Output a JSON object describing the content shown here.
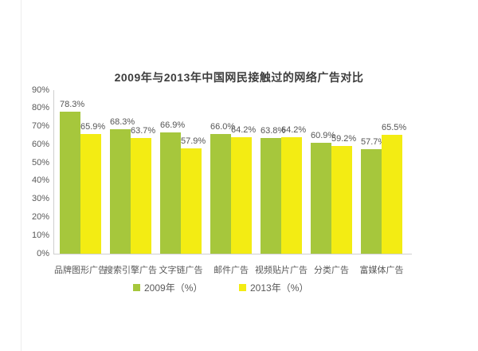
{
  "page": {
    "background": "#ffffff"
  },
  "chart_data": {
    "type": "bar",
    "title": "2009年与2013年中国网民接触过的网络广告对比",
    "categories": [
      "品牌图形广告",
      "搜索引擎广告",
      "文字链广告",
      "邮件广告",
      "视频贴片广告",
      "分类广告",
      "富媒体广告"
    ],
    "series": [
      {
        "name": "2009年（%）",
        "color": "#A6C73C",
        "values": [
          78.3,
          68.3,
          66.9,
          66.0,
          63.8,
          60.9,
          57.7
        ]
      },
      {
        "name": "2013年（%）",
        "color": "#F3EC13",
        "values": [
          65.9,
          63.7,
          57.9,
          64.2,
          64.2,
          59.2,
          65.5
        ]
      }
    ],
    "ylim": [
      0,
      90
    ],
    "ytick_step": 10,
    "ytick_suffix": "%",
    "value_label_suffix": "%",
    "grid": false,
    "legend_position": "bottom",
    "axis_color": "#cfcfcf",
    "text_color": "#595959",
    "title_color": "#3d3d3d"
  }
}
